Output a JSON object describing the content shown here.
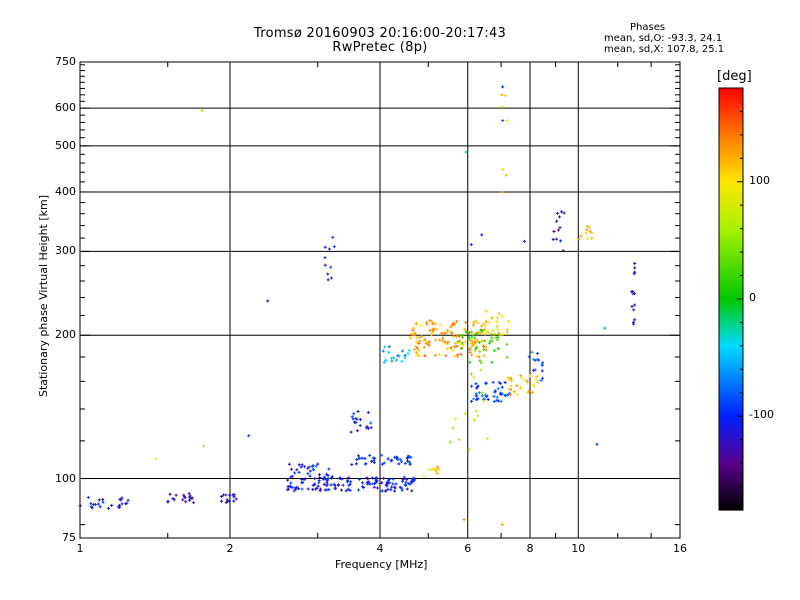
{
  "header": {
    "title_line1": "Tromsø 20160903 20:16:00-20:17:43",
    "title_line2": "RwPretec (8p)"
  },
  "phase_box": {
    "title": "Phases",
    "line_o": "mean, sd,O: -93.3, 24.1",
    "line_x": "mean, sd,X: 107.8, 25.1"
  },
  "colorbar": {
    "label": "[deg]",
    "ticks": [
      "100",
      "0",
      "-100"
    ],
    "tick_values": [
      100,
      0,
      -100
    ],
    "range": [
      -180,
      180
    ],
    "palette": "rainbow"
  },
  "chart_data": {
    "type": "scatter",
    "xlabel": "Frequency [MHz]",
    "ylabel": "Stationary phase Virtual Height [km]",
    "xscale": "log",
    "yscale": "log",
    "xlim": [
      1,
      16
    ],
    "ylim": [
      75,
      750
    ],
    "x_ticks": [
      1,
      2,
      4,
      6,
      8,
      10,
      16
    ],
    "x_tick_labels": [
      "1",
      "2",
      "4",
      "6",
      "8",
      "10",
      "16"
    ],
    "y_ticks": [
      75,
      100,
      200,
      300,
      400,
      500,
      600,
      750
    ],
    "y_tick_labels": [
      "75",
      "100",
      "200",
      "300",
      "400",
      "500",
      "600",
      "750"
    ],
    "grid_x": [
      2,
      4,
      6,
      8,
      10
    ],
    "grid_y": [
      100,
      200,
      300,
      400,
      500,
      600
    ],
    "color_variable": "phase [deg]",
    "clusters": [
      {
        "x": [
          1.0,
          1.25
        ],
        "y": [
          86,
          92
        ],
        "phase": -110,
        "n": 24
      },
      {
        "x": [
          1.5,
          1.7
        ],
        "y": [
          88,
          93
        ],
        "phase": -125,
        "n": 18
      },
      {
        "x": [
          1.9,
          2.1
        ],
        "y": [
          89,
          94
        ],
        "phase": -120,
        "n": 14
      },
      {
        "x": [
          2.6,
          4.7
        ],
        "y": [
          94,
          101
        ],
        "phase": -105,
        "n": 140
      },
      {
        "x": [
          3.5,
          4.7
        ],
        "y": [
          107,
          112
        ],
        "phase": -100,
        "n": 40
      },
      {
        "x": [
          2.6,
          3.2
        ],
        "y": [
          101,
          108
        ],
        "phase": -95,
        "n": 25
      },
      {
        "x": [
          3.5,
          3.9
        ],
        "y": [
          125,
          140
        ],
        "phase": -105,
        "n": 18
      },
      {
        "x": [
          3.1,
          3.25
        ],
        "y": [
          248,
          325
        ],
        "phase": -110,
        "n": 10
      },
      {
        "x": [
          4.6,
          6.6
        ],
        "y": [
          180,
          215
        ],
        "phase": 125,
        "n": 140
      },
      {
        "x": [
          4.0,
          4.6
        ],
        "y": [
          175,
          190
        ],
        "phase": -60,
        "n": 18
      },
      {
        "x": [
          5.7,
          7.2
        ],
        "y": [
          175,
          205
        ],
        "phase": 20,
        "n": 40
      },
      {
        "x": [
          6.1,
          7.3
        ],
        "y": [
          145,
          160
        ],
        "phase": -85,
        "n": 45
      },
      {
        "x": [
          7.2,
          8.3
        ],
        "y": [
          150,
          165
        ],
        "phase": 115,
        "n": 25
      },
      {
        "x": [
          7.9,
          8.5
        ],
        "y": [
          160,
          185
        ],
        "phase": -75,
        "n": 15
      },
      {
        "x": [
          6.5,
          7.3
        ],
        "y": [
          200,
          225
        ],
        "phase": 100,
        "n": 20
      },
      {
        "x": [
          8.9,
          9.4
        ],
        "y": [
          300,
          365
        ],
        "phase": -120,
        "n": 12
      },
      {
        "x": [
          10.0,
          10.8
        ],
        "y": [
          315,
          340
        ],
        "phase": 110,
        "n": 10
      },
      {
        "x": [
          12.8,
          13.0
        ],
        "y": [
          210,
          290
        ],
        "phase": -120,
        "n": 14
      },
      {
        "x": [
          5.5,
          6.6
        ],
        "y": [
          110,
          170
        ],
        "phase": 70,
        "n": 15
      },
      {
        "x": [
          7.0,
          7.3
        ],
        "y": [
          380,
          700
        ],
        "phase": 100,
        "n": 7
      },
      {
        "x": [
          4.9,
          5.3
        ],
        "y": [
          100,
          107
        ],
        "phase": 110,
        "n": 10
      }
    ],
    "points": [
      {
        "x": 1.76,
        "y": 593,
        "phase": 50
      },
      {
        "x": 1.77,
        "y": 117,
        "phase": 60
      },
      {
        "x": 1.42,
        "y": 110,
        "phase": 95
      },
      {
        "x": 2.18,
        "y": 123,
        "phase": -90
      },
      {
        "x": 2.38,
        "y": 236,
        "phase": -110
      },
      {
        "x": 5.95,
        "y": 485,
        "phase": -30
      },
      {
        "x": 5.9,
        "y": 82,
        "phase": 130
      },
      {
        "x": 6.1,
        "y": 310,
        "phase": -100
      },
      {
        "x": 6.4,
        "y": 325,
        "phase": -105
      },
      {
        "x": 7.05,
        "y": 665,
        "phase": -100
      },
      {
        "x": 7.05,
        "y": 565,
        "phase": -80
      },
      {
        "x": 7.04,
        "y": 80,
        "phase": 130
      },
      {
        "x": 7.8,
        "y": 315,
        "phase": -115
      },
      {
        "x": 10.9,
        "y": 118,
        "phase": -95
      },
      {
        "x": 11.3,
        "y": 207,
        "phase": -60
      }
    ]
  }
}
